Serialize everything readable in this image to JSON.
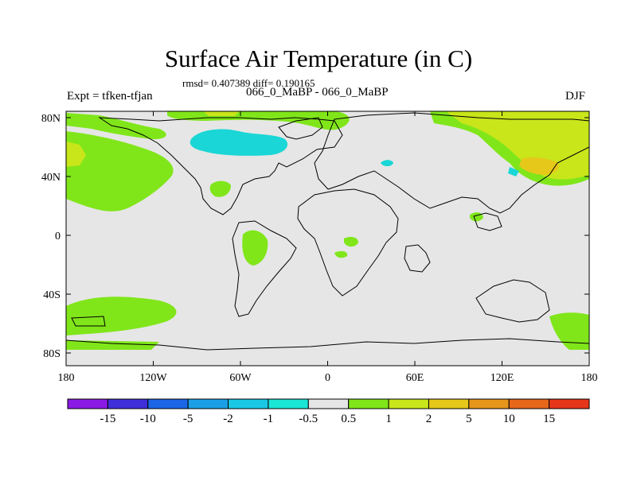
{
  "title": "Surface Air Temperature (in C)",
  "stats": "rmsd= 0.407389 diff= 0.190165",
  "subtitle": "066_0_MaBP - 066_0_MaBP",
  "experiment": "Expt = tfken-tfjan",
  "season": "DJF",
  "map": {
    "projection": "cylindrical-equidistant",
    "lon_range": [
      -180,
      180
    ],
    "lat_range": [
      -90,
      90
    ],
    "background_color": "#e6e6e6",
    "x_ticks": [
      "180",
      "120W",
      "60W",
      "0",
      "60E",
      "120E",
      "180"
    ],
    "y_ticks": [
      "80N",
      "40N",
      "0",
      "40S",
      "80S"
    ]
  },
  "colorbar": {
    "labels": [
      "-15",
      "-10",
      "-5",
      "-2",
      "-1",
      "-0.5",
      "0.5",
      "1",
      "2",
      "5",
      "10",
      "15"
    ],
    "colors": [
      "#8c1ae6",
      "#3f2fd9",
      "#1a66e6",
      "#1a9fe6",
      "#1ac8e6",
      "#1ae6d6",
      "#e6e6e6",
      "#80e61a",
      "#c8e61a",
      "#e6c81a",
      "#e6961a",
      "#e6661a",
      "#e6361a"
    ]
  },
  "colors": {
    "green": "#80e61a",
    "yellow_green": "#c8e61a",
    "yellow": "#e6c81a",
    "cyan": "#1ad6d6",
    "coast": "#000000"
  }
}
